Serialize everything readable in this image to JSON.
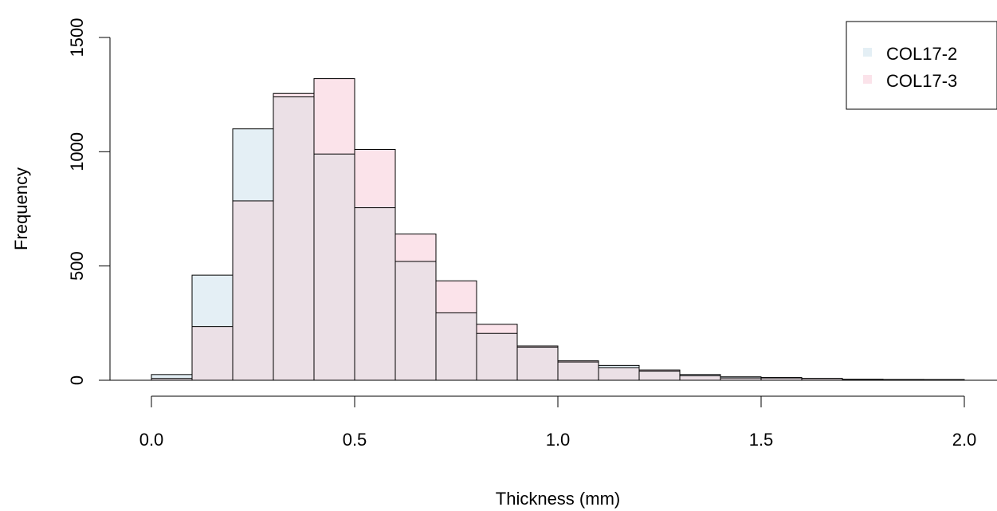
{
  "chart_data": {
    "type": "bar",
    "subtype": "overlapping-histogram",
    "xlabel": "Thickness (mm)",
    "ylabel": "Frequency",
    "xlim": [
      0,
      2
    ],
    "ylim": [
      0,
      1500
    ],
    "x_ticks": [
      "0.0",
      "0.5",
      "1.0",
      "1.5",
      "2.0"
    ],
    "y_ticks": [
      "0",
      "500",
      "1000",
      "1500"
    ],
    "bin_edges": [
      0.0,
      0.1,
      0.2,
      0.3,
      0.4,
      0.5,
      0.6,
      0.7,
      0.8,
      0.9,
      1.0,
      1.1,
      1.2,
      1.3,
      1.4,
      1.5,
      1.6,
      1.7,
      1.8,
      1.9,
      2.0
    ],
    "series": [
      {
        "name": "COL17-2",
        "color": "#e4eff5",
        "values": [
          25,
          460,
          1100,
          1240,
          990,
          755,
          520,
          295,
          205,
          145,
          80,
          65,
          40,
          25,
          15,
          12,
          8,
          4,
          3,
          3
        ]
      },
      {
        "name": "COL17-3",
        "color": "#fbe3ea",
        "values": [
          8,
          235,
          785,
          1255,
          1320,
          1010,
          640,
          435,
          245,
          150,
          85,
          55,
          45,
          20,
          10,
          10,
          8,
          4,
          3,
          2
        ]
      }
    ],
    "overlap_color": "#ebe0e6",
    "legend": {
      "position": "top-right",
      "entries": [
        "COL17-2",
        "COL17-3"
      ]
    },
    "grid": false
  }
}
